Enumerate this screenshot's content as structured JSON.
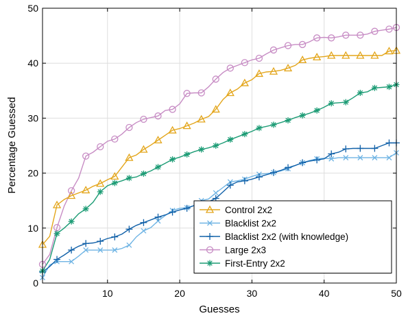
{
  "chart_data": {
    "type": "line",
    "title": "",
    "xlabel": "Guesses",
    "ylabel": "Percentage Guessed",
    "xlim": [
      1,
      50
    ],
    "ylim": [
      0,
      50
    ],
    "xticks": [
      10,
      20,
      30,
      40,
      50
    ],
    "yticks": [
      0,
      10,
      20,
      30,
      40,
      50
    ],
    "grid": true,
    "legend_position": "bottom-right",
    "series": [
      {
        "name": "Control 2x2",
        "color": "#e3a51a",
        "marker": "triangle",
        "x": [
          1,
          2,
          3,
          4,
          5,
          6,
          7,
          8,
          9,
          10,
          11,
          12,
          13,
          14,
          15,
          16,
          17,
          18,
          19,
          20,
          21,
          22,
          23,
          24,
          25,
          26,
          27,
          28,
          29,
          30,
          31,
          32,
          33,
          34,
          35,
          36,
          37,
          38,
          39,
          40,
          41,
          42,
          43,
          44,
          45,
          46,
          47,
          48,
          49,
          50
        ],
        "y": [
          7,
          8.5,
          14.2,
          15.2,
          15.9,
          16.4,
          16.9,
          17.6,
          18.1,
          18.8,
          19.4,
          21.1,
          22.8,
          23.3,
          24.3,
          25.1,
          26,
          26.9,
          27.8,
          28.1,
          28.6,
          29.1,
          29.8,
          30.3,
          31.6,
          33.4,
          34.6,
          35.3,
          36.4,
          37,
          38.1,
          38.4,
          38.5,
          38.7,
          39.1,
          39.6,
          40.6,
          40.9,
          41.1,
          41.2,
          41.4,
          41.4,
          41.4,
          41.4,
          41.4,
          41.4,
          41.4,
          41.4,
          42.2,
          42.3
        ]
      },
      {
        "name": "Blacklist 2x2",
        "color": "#6fb4e4",
        "marker": "x",
        "x": [
          1,
          2,
          3,
          4,
          5,
          6,
          7,
          8,
          9,
          10,
          11,
          12,
          13,
          14,
          15,
          16,
          17,
          18,
          19,
          20,
          21,
          22,
          23,
          24,
          25,
          26,
          27,
          28,
          29,
          30,
          31,
          32,
          33,
          34,
          35,
          36,
          37,
          38,
          39,
          40,
          41,
          42,
          43,
          44,
          45,
          46,
          47,
          48,
          49,
          50
        ],
        "y": [
          1,
          3.3,
          3.9,
          3.9,
          3.9,
          4.9,
          6,
          6,
          6,
          6,
          6,
          6.3,
          6.9,
          8.4,
          9.5,
          10.1,
          11.3,
          12.3,
          13.2,
          13.6,
          13.7,
          14.1,
          15,
          15.3,
          16.4,
          17.4,
          18.4,
          18.6,
          18.9,
          19.4,
          19.8,
          19.9,
          20.1,
          20.4,
          20.8,
          21.4,
          21.9,
          22.3,
          22.6,
          22.7,
          22.6,
          22.8,
          22.8,
          22.8,
          22.8,
          22.8,
          22.8,
          22.8,
          22.8,
          23.7
        ]
      },
      {
        "name": "Blacklist 2x2 (with knowledge)",
        "color": "#1060a8",
        "marker": "plus",
        "x": [
          1,
          2,
          3,
          4,
          5,
          6,
          7,
          8,
          9,
          10,
          11,
          12,
          13,
          14,
          15,
          16,
          17,
          18,
          19,
          20,
          21,
          22,
          23,
          24,
          25,
          26,
          27,
          28,
          29,
          30,
          31,
          32,
          33,
          34,
          35,
          36,
          37,
          38,
          39,
          40,
          41,
          42,
          43,
          44,
          45,
          46,
          47,
          48,
          49,
          50
        ],
        "y": [
          2,
          3,
          4.3,
          5.1,
          6,
          6.7,
          7.2,
          7.3,
          7.6,
          8.1,
          8.4,
          8.9,
          9.8,
          10.5,
          11,
          11.5,
          12,
          12.4,
          12.9,
          13.3,
          13.6,
          14.1,
          14.5,
          14.8,
          15.4,
          16.6,
          17.8,
          18.4,
          18.6,
          18.9,
          19.3,
          19.7,
          20.1,
          20.5,
          21,
          21.4,
          21.9,
          22.2,
          22.4,
          22.6,
          23.5,
          23.8,
          24.4,
          24.5,
          24.5,
          24.5,
          24.5,
          25,
          25.5,
          25.5
        ]
      },
      {
        "name": "Large 2x3",
        "color": "#c78cc4",
        "marker": "circle",
        "x": [
          1,
          2,
          3,
          4,
          5,
          6,
          7,
          8,
          9,
          10,
          11,
          12,
          13,
          14,
          15,
          16,
          17,
          18,
          19,
          20,
          21,
          22,
          23,
          24,
          25,
          26,
          27,
          28,
          29,
          30,
          31,
          32,
          33,
          34,
          35,
          36,
          37,
          38,
          39,
          40,
          41,
          42,
          43,
          44,
          45,
          46,
          47,
          48,
          49,
          50
        ],
        "y": [
          3.4,
          5.2,
          10.1,
          14,
          16.8,
          19.1,
          23.1,
          23.8,
          24.8,
          25.8,
          26.2,
          27.1,
          28.3,
          29.2,
          29.8,
          30.1,
          30.4,
          31.4,
          31.6,
          32.6,
          34.5,
          34.6,
          34.6,
          35.7,
          37.1,
          38.3,
          39.1,
          39.6,
          40.1,
          40.6,
          40.9,
          41.7,
          42.4,
          42.8,
          43.2,
          43.4,
          43.4,
          43.9,
          44.6,
          44.7,
          44.6,
          44.8,
          45.1,
          45.1,
          45.1,
          45.3,
          45.8,
          46,
          46.2,
          46.5
        ]
      },
      {
        "name": "First-Entry 2x2",
        "color": "#1b9b74",
        "marker": "star",
        "x": [
          1,
          2,
          3,
          4,
          5,
          6,
          7,
          8,
          9,
          10,
          11,
          12,
          13,
          14,
          15,
          16,
          17,
          18,
          19,
          20,
          21,
          22,
          23,
          24,
          25,
          26,
          27,
          28,
          29,
          30,
          31,
          32,
          33,
          34,
          35,
          36,
          37,
          38,
          39,
          40,
          41,
          42,
          43,
          44,
          45,
          46,
          47,
          48,
          49,
          50
        ],
        "y": [
          2.2,
          4.3,
          9,
          10,
          11.2,
          12.6,
          13.5,
          14.7,
          16.6,
          17.7,
          18.2,
          18.6,
          19.1,
          19.3,
          19.9,
          20.4,
          21.1,
          21.8,
          22.5,
          22.9,
          23.4,
          23.9,
          24.3,
          24.6,
          25,
          25.5,
          26.1,
          26.6,
          27.1,
          27.6,
          28.2,
          28.5,
          28.8,
          29.2,
          29.6,
          30.1,
          30.5,
          30.9,
          31.4,
          32,
          32.7,
          32.8,
          32.9,
          33.7,
          34.6,
          34.8,
          35.5,
          35.6,
          35.7,
          36.1
        ]
      }
    ]
  }
}
